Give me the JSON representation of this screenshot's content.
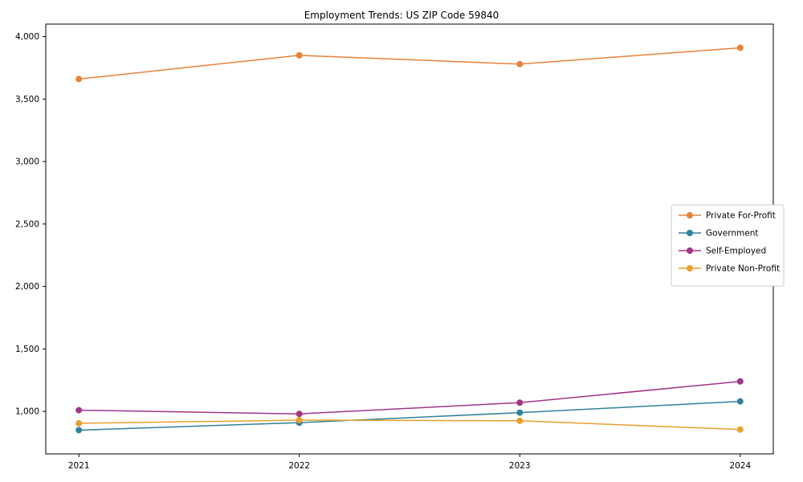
{
  "chart_data": {
    "type": "line",
    "title": "Employment Trends: US ZIP Code 59840",
    "x": [
      2021,
      2022,
      2023,
      2024
    ],
    "x_tick_labels": [
      "2021",
      "2022",
      "2023",
      "2024"
    ],
    "y_ticks": [
      1000,
      1500,
      2000,
      2500,
      3000,
      3500,
      4000
    ],
    "y_tick_labels": [
      "1,000",
      "1,500",
      "2,000",
      "2,500",
      "3,000",
      "3,500",
      "4,000"
    ],
    "xlim": [
      2020.85,
      2024.15
    ],
    "ylim": [
      660,
      4100
    ],
    "grid": false,
    "legend_position": "center-right",
    "marker": "circle",
    "series": [
      {
        "name": "Private For-Profit",
        "color": "#e8833a",
        "values": [
          3660,
          3850,
          3780,
          3910
        ]
      },
      {
        "name": "Government",
        "color": "#31829c",
        "values": [
          850,
          910,
          990,
          1080
        ]
      },
      {
        "name": "Self-Employed",
        "color": "#a23487",
        "values": [
          1010,
          980,
          1070,
          1240
        ]
      },
      {
        "name": "Private Non-Profit",
        "color": "#e8a02e",
        "values": [
          905,
          930,
          925,
          855
        ]
      }
    ],
    "xlabel": "",
    "ylabel": ""
  },
  "styles": {
    "axis_color": "#000000",
    "background": "#ffffff",
    "legend_border": "#cccccc"
  }
}
